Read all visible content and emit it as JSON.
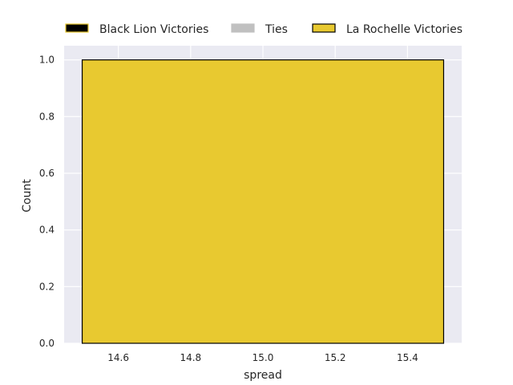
{
  "chart_data": {
    "type": "bar",
    "subtype": "histogram-stacked",
    "xlabel": "spread",
    "ylabel": "Count",
    "xlim": [
      14.45,
      15.55
    ],
    "ylim": [
      0,
      1.05
    ],
    "xticks": [
      14.6,
      14.8,
      15.0,
      15.2,
      15.4
    ],
    "xtick_labels": [
      "14.6",
      "14.8",
      "15.0",
      "15.2",
      "15.4"
    ],
    "yticks": [
      0,
      0.2,
      0.4,
      0.6,
      0.8,
      1.0
    ],
    "ytick_labels": [
      "0.0",
      "0.2",
      "0.4",
      "0.6",
      "0.8",
      "1.0"
    ],
    "grid": true,
    "legend_position": "top",
    "bins": [
      {
        "x_start": 14.5,
        "x_end": 15.5,
        "series": "La Rochelle Victories",
        "value": 1
      }
    ],
    "series": [
      {
        "name": "Black Lion Victories",
        "color": "#000000",
        "edge": "#e8c930",
        "values": [
          0
        ]
      },
      {
        "name": "Ties",
        "color": "#c0c0c0",
        "edge": "#c0c0c0",
        "values": [
          0
        ]
      },
      {
        "name": "La Rochelle Victories",
        "color": "#e8c930",
        "edge": "#000000",
        "values": [
          1
        ]
      }
    ]
  },
  "colors": {
    "plot_background": "#eaeaf2",
    "grid": "#ffffff",
    "text": "#262626"
  }
}
